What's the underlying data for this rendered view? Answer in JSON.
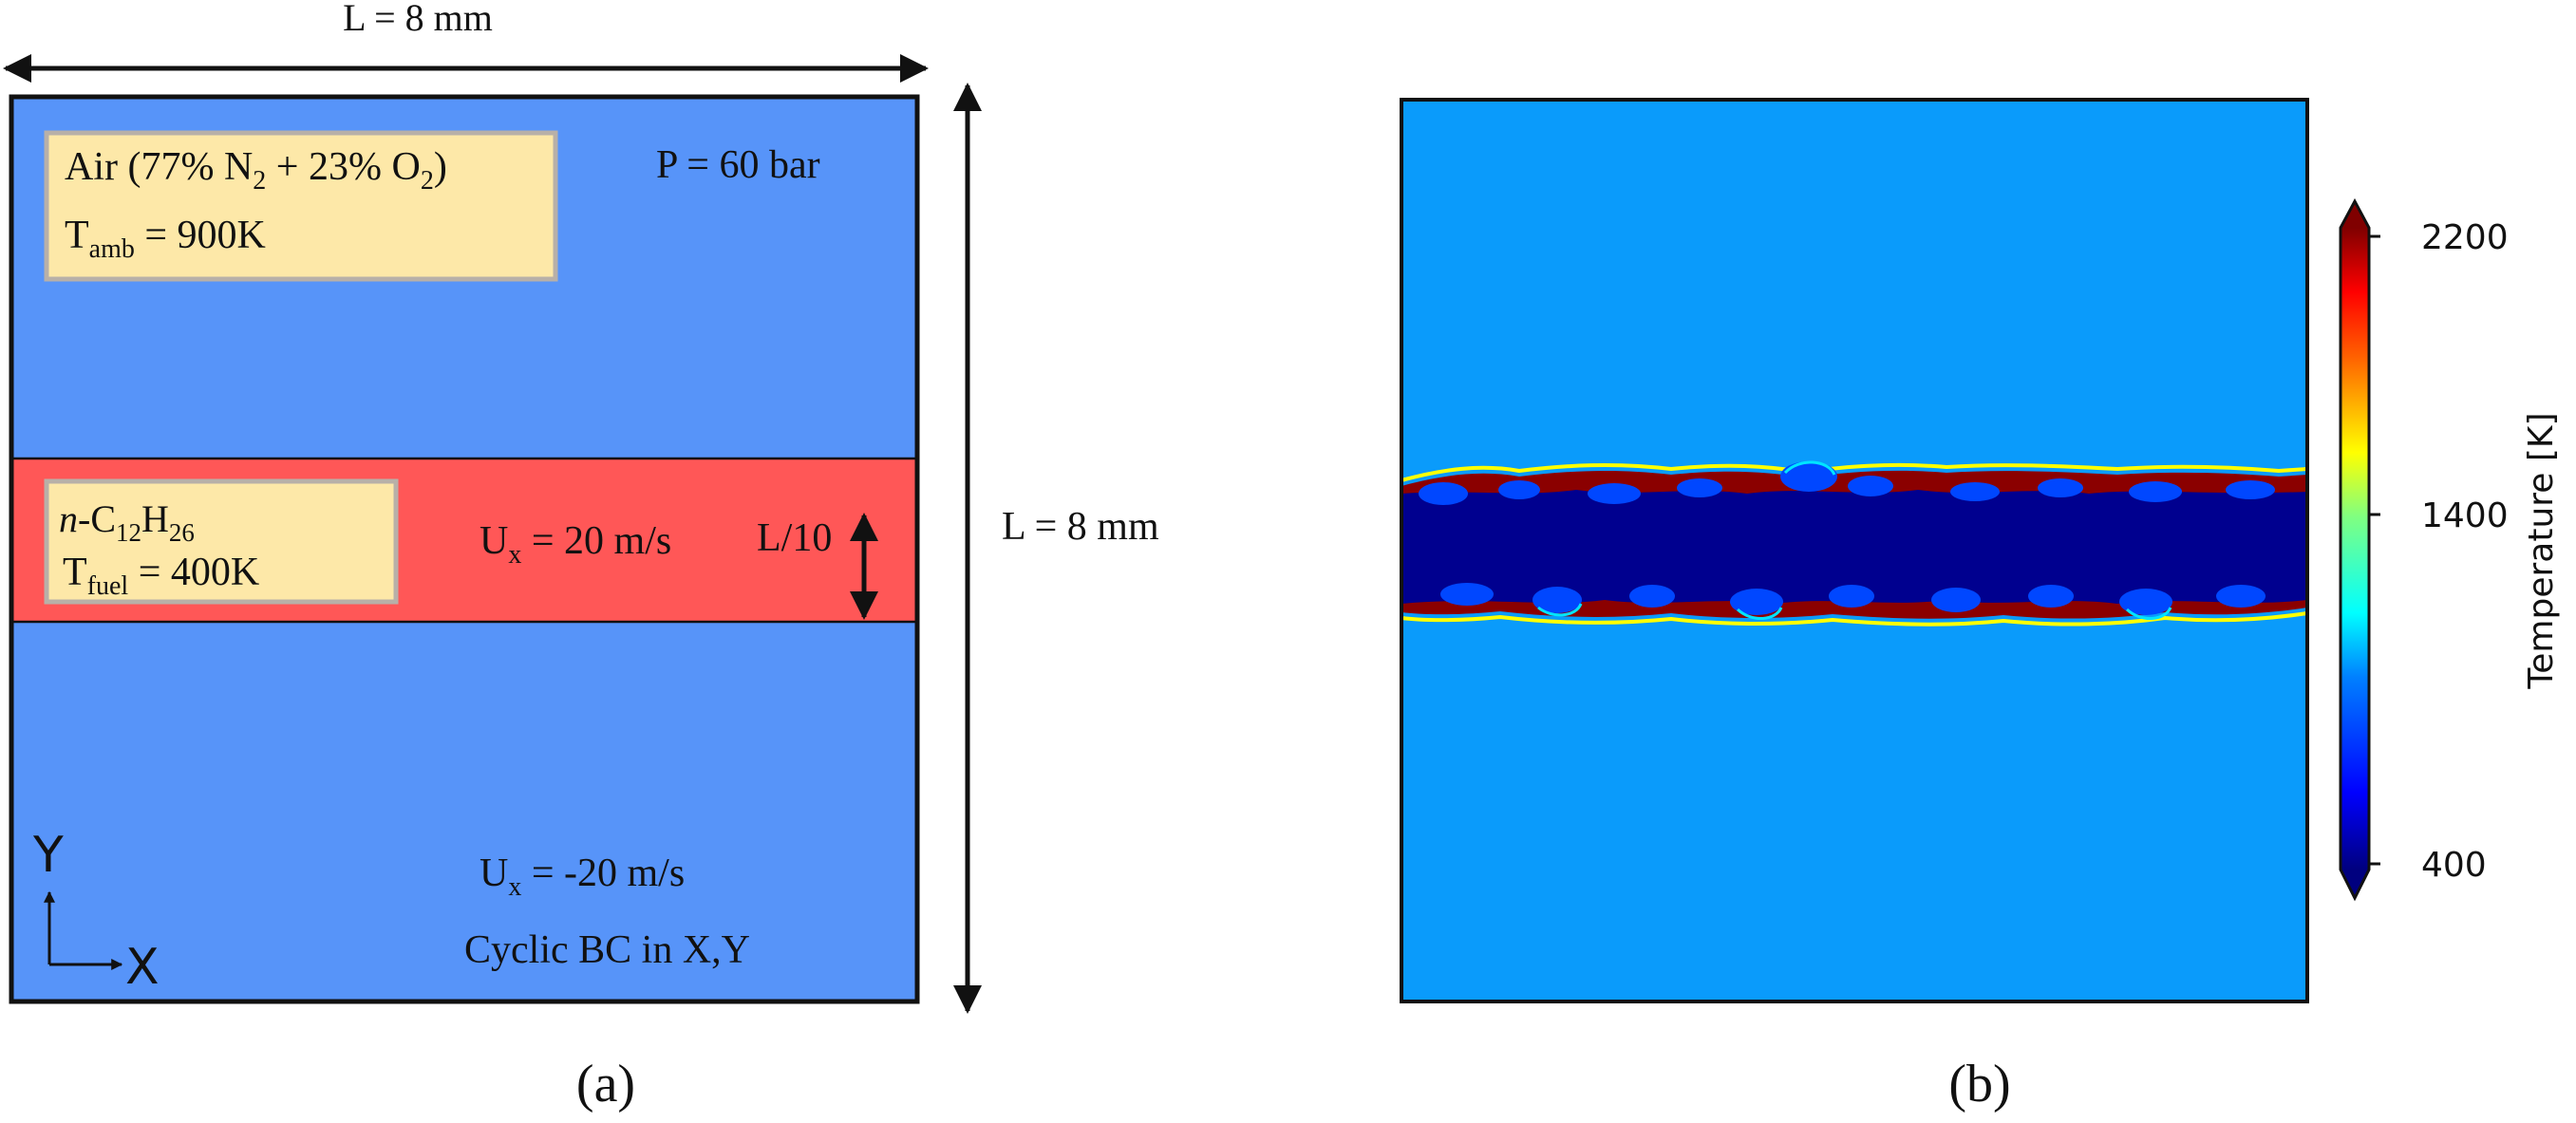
{
  "panel_a": {
    "top_dimension": "L = 8 mm",
    "right_dimension": "L = 8 mm",
    "air_box": {
      "line1_prefix": "Air (77% N",
      "line1_sub1": "2",
      "line1_mid": " + 23% O",
      "line1_sub2": "2",
      "line1_suffix": ")",
      "line2_main": "T",
      "line2_sub": "amb",
      "line2_value": " = 900K"
    },
    "pressure": "P = 60 bar",
    "fuel_box": {
      "line1_italic": "n",
      "line1_prefix": "-C",
      "line1_sub1": "12",
      "line1_mid": "H",
      "line1_sub2": "26",
      "line2_main": "T",
      "line2_sub": "fuel",
      "line2_value": " = 400K"
    },
    "fuel_velocity": {
      "main": "U",
      "sub": "x",
      "value": " = 20 m/s"
    },
    "jet_width": "L/10",
    "air_velocity": {
      "main": "U",
      "sub": "x",
      "value": " = -20 m/s"
    },
    "boundary": "Cyclic BC in X,Y",
    "axis_y": "Y",
    "axis_x": "X",
    "caption": "(a)",
    "colors": {
      "air": "#5794f9",
      "fuel": "#ff5757",
      "label_box": "#fde8a8",
      "label_border": "#b8b0a8"
    }
  },
  "panel_b": {
    "caption": "(b)",
    "colorbar_label": "Temperature [K]",
    "colorbar_ticks": [
      "2200",
      "1400",
      "400"
    ],
    "colorbar_range": [
      400,
      2200
    ],
    "colormap": "jet",
    "colors": {
      "ambient": "#0a9bfb",
      "fuel_core": "#00008f",
      "flame": "#8b0000"
    }
  }
}
